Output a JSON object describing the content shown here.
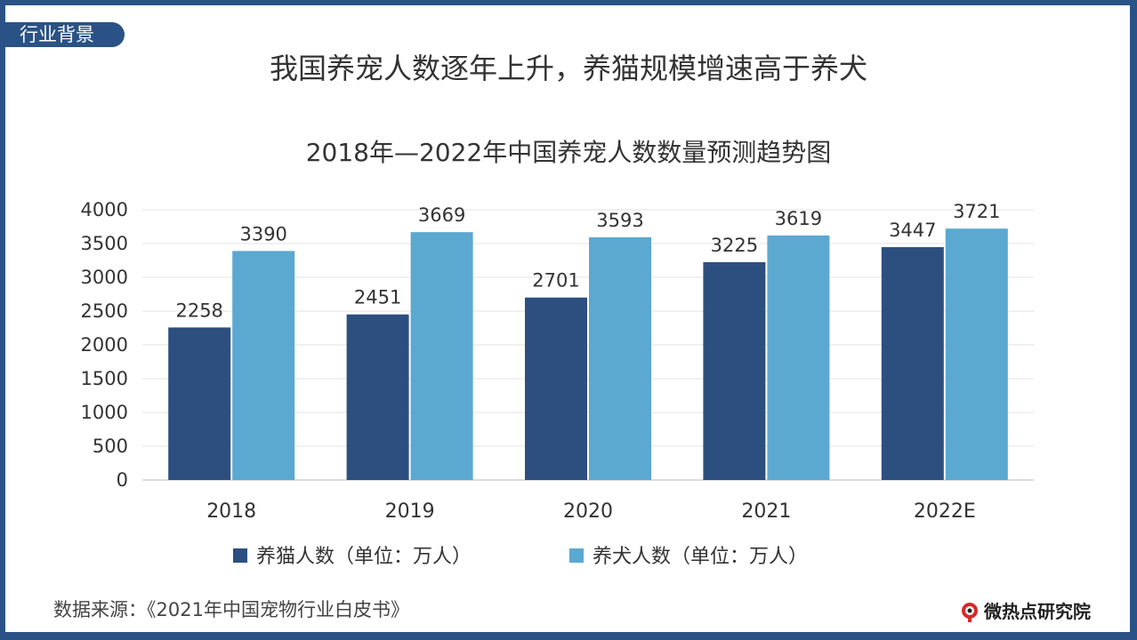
{
  "tag": "行业背景",
  "headline": "我国养宠人数逐年上升，养猫规模增速高于养犬",
  "source": "数据来源：《2021年中国宠物行业白皮书》",
  "logo": "微热点研究院",
  "colors": {
    "frame": "#2b5286",
    "cat": "#2d4f80",
    "dog": "#5ba8d0"
  },
  "chart_data": {
    "type": "bar",
    "title": "2018年—2022年中国养宠人数数量预测趋势图",
    "categories": [
      "2018",
      "2019",
      "2020",
      "2021",
      "2022E"
    ],
    "series": [
      {
        "name": "养猫人数（单位：万人）",
        "values": [
          2258,
          2451,
          2701,
          3225,
          3447
        ]
      },
      {
        "name": "养犬人数（单位：万人）",
        "values": [
          3390,
          3669,
          3593,
          3619,
          3721
        ]
      }
    ],
    "ylim": [
      0,
      4000
    ],
    "yticks": [
      0,
      500,
      1000,
      1500,
      2000,
      2500,
      3000,
      3500,
      4000
    ],
    "grid": true,
    "legend": "bottom"
  }
}
